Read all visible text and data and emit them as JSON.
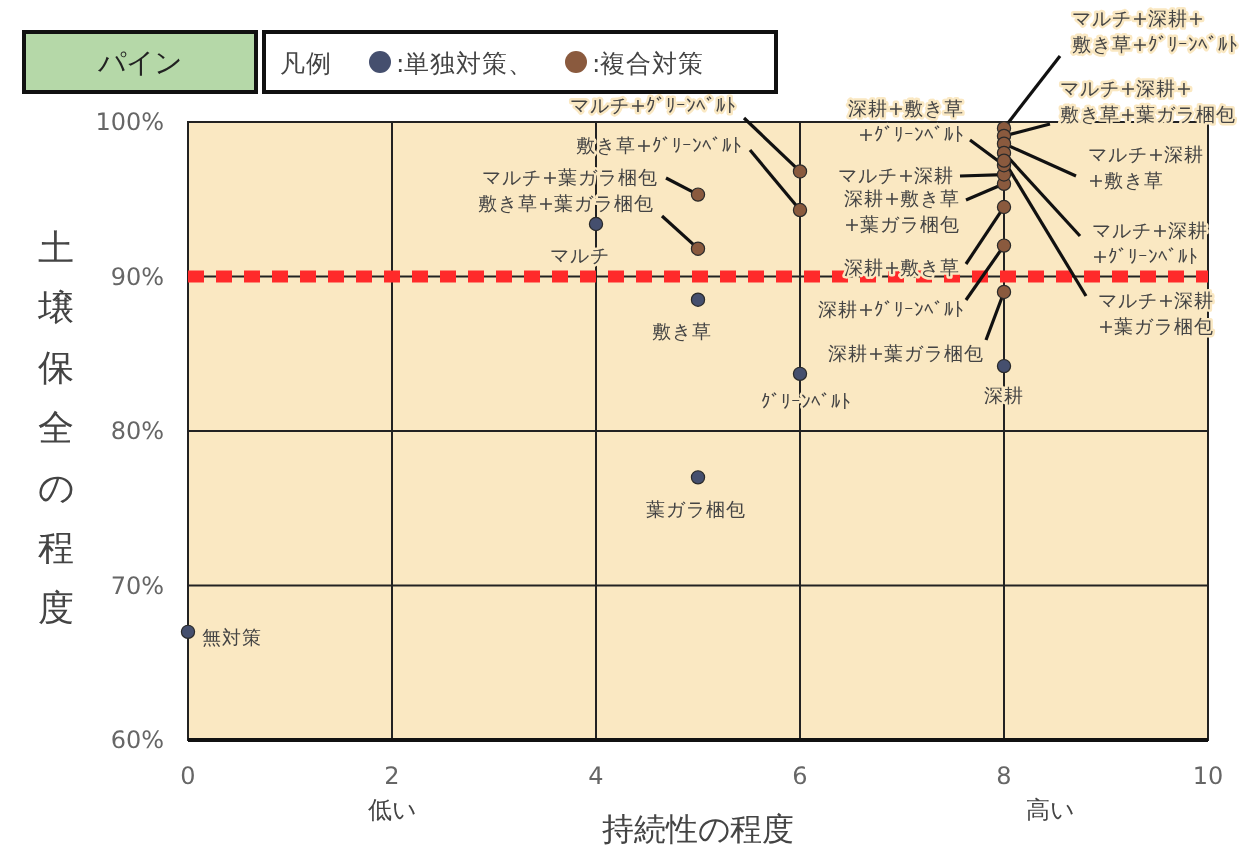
{
  "chart_data": {
    "type": "scatter",
    "title": "パイン",
    "legend_title": "凡例",
    "legend": "top",
    "xlabel": "持続性の程度",
    "ylabel": "土壌保全の程度",
    "xlim": [
      0,
      10
    ],
    "xticks": [
      0,
      2,
      4,
      6,
      8,
      10
    ],
    "ylim": [
      60,
      100
    ],
    "yticks": [
      {
        "value": 60,
        "label": "60%"
      },
      {
        "value": 70,
        "label": "70%"
      },
      {
        "value": 80,
        "label": "80%"
      },
      {
        "value": 90,
        "label": "90%"
      },
      {
        "value": 100,
        "label": "100%"
      }
    ],
    "grid": true,
    "marker": "circle",
    "ref_lines": [
      {
        "axis": "y",
        "value": 90,
        "color": "#ff2a2a",
        "line_style": "dashed"
      }
    ],
    "series": [
      {
        "name": ":単独対策、",
        "color": "#454f6e",
        "x": [
          0,
          4,
          5,
          5,
          6,
          8
        ],
        "values": [
          67,
          93.4,
          88.5,
          77,
          83.7,
          84.2
        ]
      },
      {
        "name": ":複合対策",
        "color": "#8a5a3e",
        "x": [
          6,
          6,
          5,
          5,
          8,
          8,
          8,
          8,
          8,
          8,
          8,
          8,
          8,
          8,
          8
        ],
        "values": [
          96.8,
          94.3,
          95.3,
          91.8,
          89,
          92,
          94.5,
          96,
          96.6,
          97.2,
          99.6,
          99.1,
          98.6,
          98,
          97.5
        ]
      }
    ],
    "annotations": [
      {
        "text": "無対策",
        "x": 0,
        "y": 67
      },
      {
        "text": "マルチ",
        "x": 4,
        "y": 93.4
      },
      {
        "text": "敷き草",
        "x": 5,
        "y": 88.5
      },
      {
        "text": "葉ガラ梱包",
        "x": 5,
        "y": 77
      },
      {
        "text": "ｸﾞﾘｰﾝﾍﾞﾙﾄ",
        "x": 6,
        "y": 83.7
      },
      {
        "text": "深耕",
        "x": 8,
        "y": 84.2
      },
      {
        "text": "マルチ+ｸﾞﾘｰﾝﾍﾞﾙﾄ",
        "x": 6,
        "y": 96.8
      },
      {
        "text": "敷き草+ｸﾞﾘｰﾝﾍﾞﾙﾄ",
        "x": 6,
        "y": 94.3
      },
      {
        "text": "マルチ+葉ガラ梱包",
        "x": 5,
        "y": 95.3
      },
      {
        "text": "敷き草+葉ガラ梱包",
        "x": 5,
        "y": 91.8
      },
      {
        "text": "深耕+葉ガラ梱包",
        "x": 8,
        "y": 89
      },
      {
        "text": "深耕+ｸﾞﾘｰﾝﾍﾞﾙﾄ",
        "x": 8,
        "y": 92
      },
      {
        "text": "深耕+敷き草",
        "x": 8,
        "y": 94.5
      },
      {
        "text": "深耕+敷き草+葉ガラ梱包",
        "x": 8,
        "y": 96
      },
      {
        "text": "マルチ+深耕",
        "x": 8,
        "y": 96.6
      },
      {
        "text": "深耕+敷き草+ｸﾞﾘｰﾝﾍﾞﾙﾄ",
        "x": 8,
        "y": 97.2
      },
      {
        "text": "マルチ+深耕+敷き草+ｸﾞﾘｰﾝﾍﾞﾙﾄ",
        "x": 8,
        "y": 99.6
      },
      {
        "text": "マルチ+深耕+敷き草+葉ガラ梱包",
        "x": 8,
        "y": 99.1
      },
      {
        "text": "マルチ+深耕+敷き草",
        "x": 8,
        "y": 98.6
      },
      {
        "text": "マルチ+深耕+ｸﾞﾘｰﾝﾍﾞﾙﾄ",
        "x": 8,
        "y": 98
      },
      {
        "text": "マルチ+深耕+葉ガラ梱包",
        "x": 8,
        "y": 97.5
      },
      "低い",
      "高い"
    ]
  }
}
